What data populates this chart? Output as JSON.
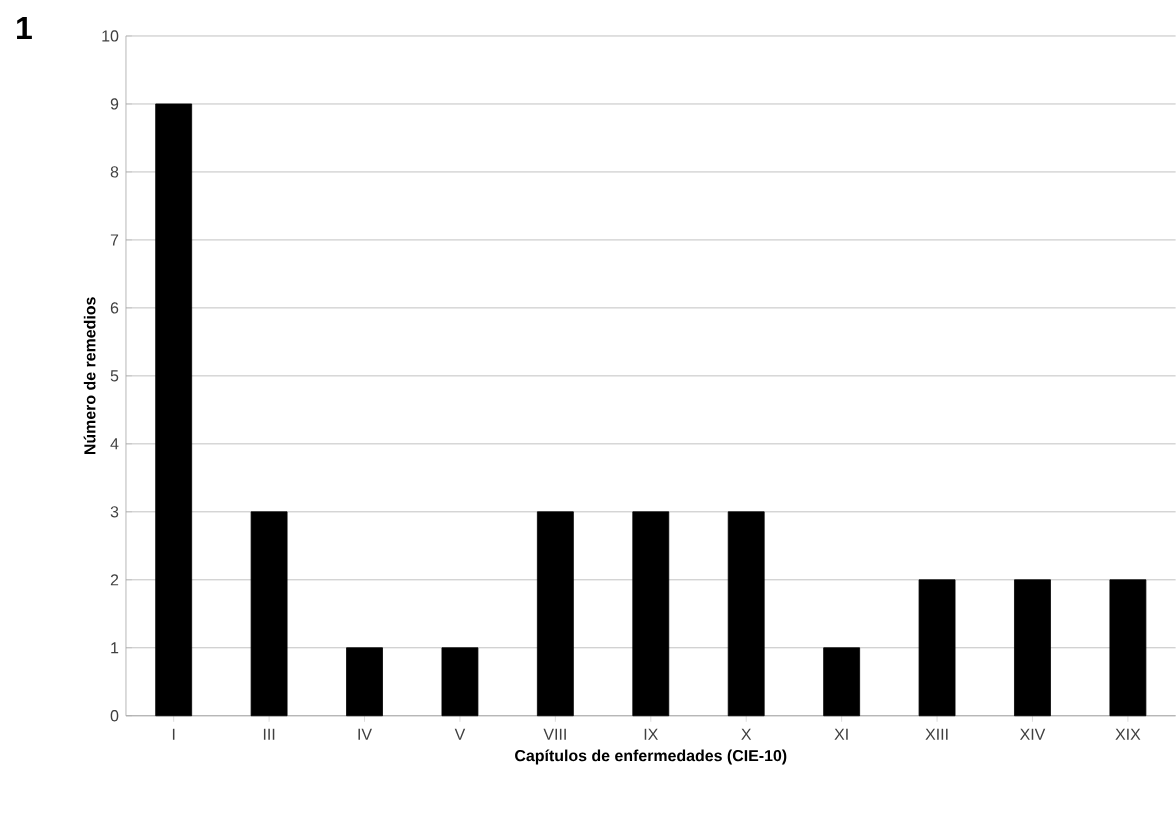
{
  "chart_data": {
    "type": "bar",
    "categories": [
      "I",
      "III",
      "IV",
      "V",
      "VIII",
      "IX",
      "X",
      "XI",
      "XIII",
      "XIV",
      "XIX"
    ],
    "values": [
      9,
      3,
      1,
      1,
      3,
      3,
      3,
      1,
      2,
      2,
      2
    ],
    "color": "#000000",
    "xlabel": "Capítulos de enfermedades (CIE-10)",
    "ylabel": "Número de remedios",
    "annotations": [
      "1"
    ],
    "ylim": [
      0,
      10
    ],
    "yticks": [
      0,
      1,
      2,
      3,
      4,
      5,
      6,
      7,
      8,
      9,
      10
    ],
    "grid": "y"
  }
}
